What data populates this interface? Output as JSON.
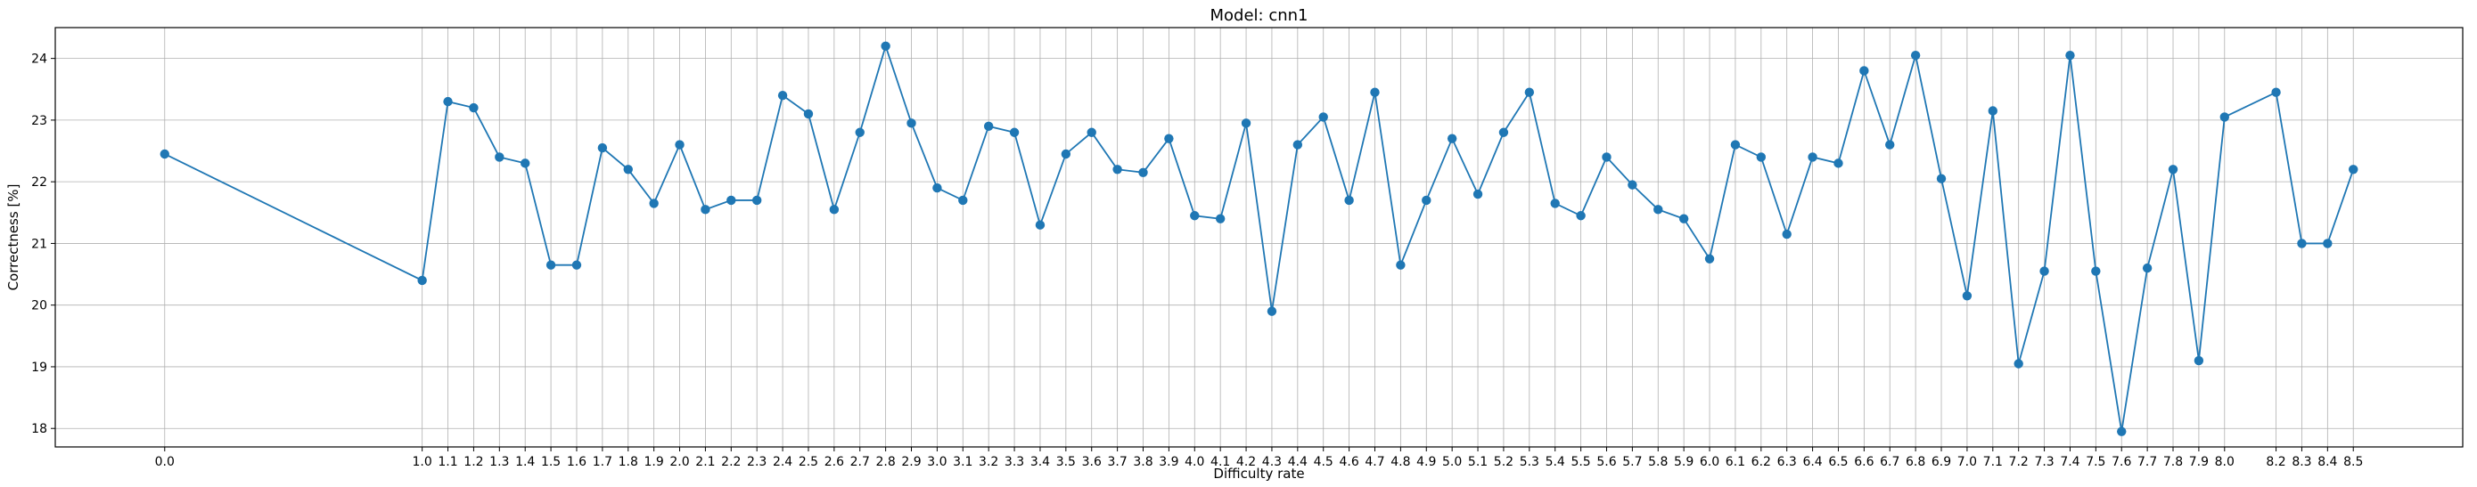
{
  "chart_data": {
    "type": "line",
    "title": "Model: cnn1",
    "xlabel": "Difficulty rate",
    "ylabel": "Correctness [%]",
    "xlim": [
      -0.425,
      8.925
    ],
    "ylim": [
      17.7,
      24.5
    ],
    "yticks": [
      18,
      19,
      20,
      21,
      22,
      23,
      24
    ],
    "grid": true,
    "line_color": "#1f77b4",
    "x": [
      0.0,
      1.0,
      1.1,
      1.2,
      1.3,
      1.4,
      1.5,
      1.6,
      1.7,
      1.8,
      1.9,
      2.0,
      2.1,
      2.2,
      2.3,
      2.4,
      2.5,
      2.6,
      2.7,
      2.8,
      2.9,
      3.0,
      3.1,
      3.2,
      3.3,
      3.4,
      3.5,
      3.6,
      3.7,
      3.8,
      3.9,
      4.0,
      4.1,
      4.2,
      4.3,
      4.4,
      4.5,
      4.6,
      4.7,
      4.8,
      4.9,
      5.0,
      5.1,
      5.2,
      5.3,
      5.4,
      5.5,
      5.6,
      5.7,
      5.8,
      5.9,
      6.0,
      6.1,
      6.2,
      6.3,
      6.4,
      6.5,
      6.6,
      6.7,
      6.8,
      6.9,
      7.0,
      7.1,
      7.2,
      7.3,
      7.4,
      7.5,
      7.6,
      7.7,
      7.8,
      7.9,
      8.0,
      8.2,
      8.3,
      8.4,
      8.5
    ],
    "x_tick_labels": [
      "0.0",
      "1.0",
      "1.1",
      "1.2",
      "1.3",
      "1.4",
      "1.5",
      "1.6",
      "1.7",
      "1.8",
      "1.9",
      "2.0",
      "2.1",
      "2.2",
      "2.3",
      "2.4",
      "2.5",
      "2.6",
      "2.7",
      "2.8",
      "2.9",
      "3.0",
      "3.1",
      "3.2",
      "3.3",
      "3.4",
      "3.5",
      "3.6",
      "3.7",
      "3.8",
      "3.9",
      "4.0",
      "4.1",
      "4.2",
      "4.3",
      "4.4",
      "4.5",
      "4.6",
      "4.7",
      "4.8",
      "4.9",
      "5.0",
      "5.1",
      "5.2",
      "5.3",
      "5.4",
      "5.5",
      "5.6",
      "5.7",
      "5.8",
      "5.9",
      "6.0",
      "6.1",
      "6.2",
      "6.3",
      "6.4",
      "6.5",
      "6.6",
      "6.7",
      "6.8",
      "6.9",
      "7.0",
      "7.1",
      "7.2",
      "7.3",
      "7.4",
      "7.5",
      "7.6",
      "7.7",
      "7.8",
      "7.9",
      "8.0",
      "8.2",
      "8.3",
      "8.4",
      "8.5"
    ],
    "y": [
      22.45,
      20.4,
      23.3,
      23.2,
      22.4,
      22.3,
      20.65,
      20.65,
      22.55,
      22.2,
      21.65,
      22.6,
      21.55,
      21.7,
      21.7,
      23.4,
      23.1,
      21.55,
      22.8,
      24.2,
      22.95,
      21.9,
      21.7,
      22.9,
      22.8,
      21.3,
      22.45,
      22.8,
      22.2,
      22.15,
      22.7,
      21.45,
      21.4,
      22.95,
      19.9,
      22.6,
      23.05,
      21.7,
      23.45,
      20.65,
      21.7,
      22.7,
      21.8,
      22.8,
      23.45,
      21.65,
      21.45,
      22.4,
      21.95,
      21.55,
      21.4,
      20.75,
      22.6,
      22.4,
      21.15,
      22.4,
      22.3,
      23.8,
      22.6,
      24.05,
      22.05,
      20.15,
      23.15,
      19.05,
      20.55,
      24.05,
      20.55,
      17.95,
      20.6,
      22.2,
      19.1,
      23.05,
      23.45,
      21.0,
      21.0,
      22.2
    ]
  }
}
